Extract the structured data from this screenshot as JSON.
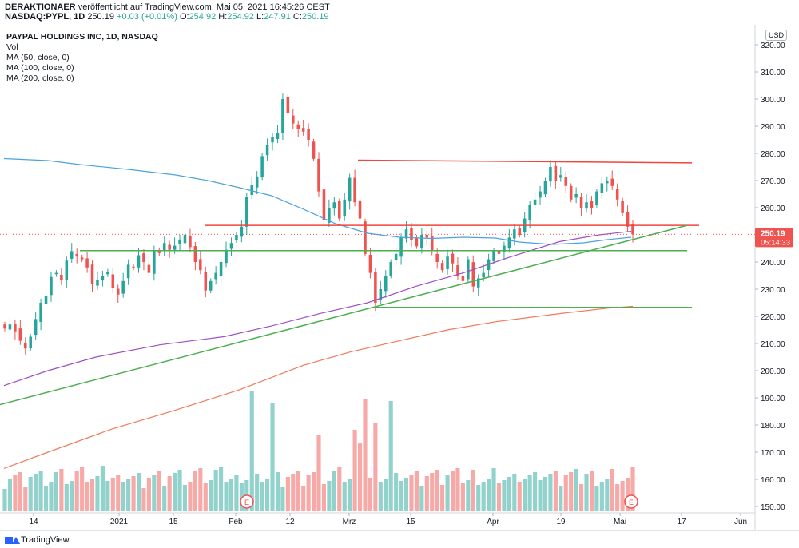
{
  "header": {
    "author": "DERAKTIONAER",
    "published_text": "veröffentlicht auf TradingView.com, Mai 05, 2021 16:45:26 CEST",
    "symbol": "NASDAQ:PYPL, 1D",
    "last": "250.19",
    "change": "+0.03 (+0.01%)",
    "o_label": "O:",
    "o_value": "254.92",
    "h_label": "H:",
    "h_value": "254.92",
    "l_label": "L:",
    "l_value": "247.91",
    "c_label": "C:",
    "c_value": "250.19"
  },
  "legend": {
    "title": "PAYPAL HOLDINGS INC, 1D, NASDAQ",
    "items": [
      "Vol",
      "MA (50, close, 0)",
      "MA (100, close, 0)",
      "MA (200, close, 0)"
    ]
  },
  "currency": "USD",
  "price_axis": {
    "ticks": [
      "320.00",
      "310.00",
      "300.00",
      "290.00",
      "280.00",
      "270.00",
      "260.00",
      "250.00",
      "240.00",
      "230.00",
      "220.00",
      "210.00",
      "200.00",
      "190.00",
      "180.00",
      "170.00",
      "160.00",
      "150.00"
    ],
    "last_price_label": "250.19",
    "countdown_label": "05:14:33"
  },
  "time_axis": {
    "ticks": [
      "14",
      "2021",
      "15",
      "Feb",
      "12",
      "Mrz",
      "15",
      "Apr",
      "19",
      "Mai",
      "17",
      "Jun"
    ]
  },
  "earnings_marker": "E",
  "footer": {
    "brand": "TradingView"
  },
  "colors": {
    "up": "#26a69a",
    "down": "#ef5350",
    "ma50": "#4aa3df",
    "ma100": "#9c4fc2",
    "ma200": "#f07a5a",
    "trend_green": "#4caf50",
    "level_red": "#f0463c"
  },
  "chart_data": {
    "type": "candlestick",
    "symbol": "NASDAQ:PYPL",
    "interval": "1D",
    "ylim": [
      150,
      320
    ],
    "series": [
      {
        "name": "Vol",
        "type": "bar"
      },
      {
        "name": "MA (50, close, 0)",
        "type": "line"
      },
      {
        "name": "MA (100, close, 0)",
        "type": "line"
      },
      {
        "name": "MA (200, close, 0)",
        "type": "line"
      }
    ],
    "last_close": 250.19,
    "horizontal_levels": [
      276.5,
      253.5,
      244.2,
      223.3
    ]
  }
}
